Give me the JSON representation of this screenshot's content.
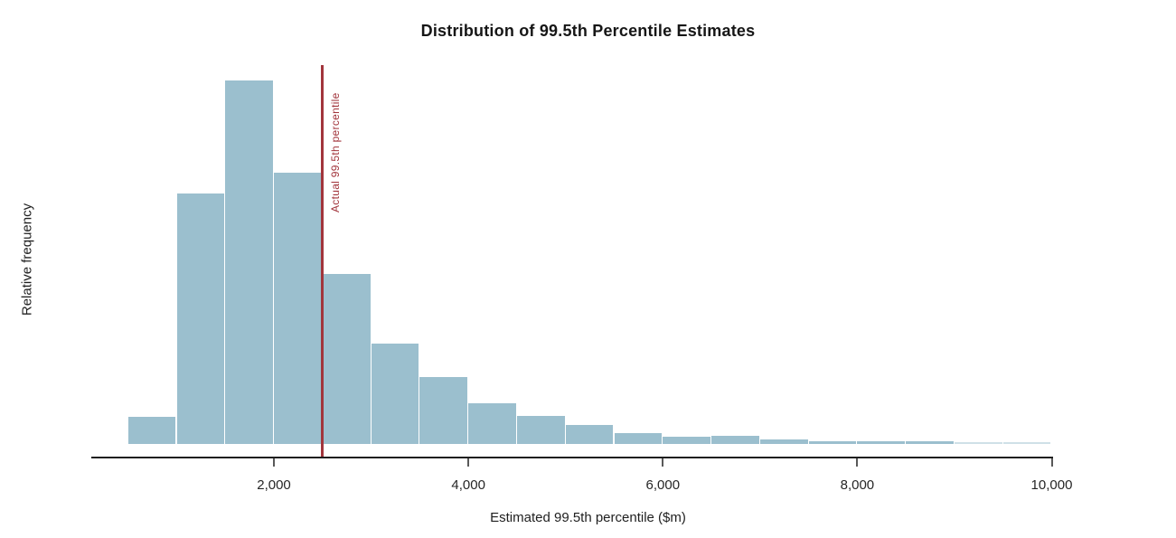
{
  "chart_data": {
    "type": "bar",
    "subtype": "histogram",
    "title": "Distribution of 99.5th Percentile Estimates",
    "xlabel": "Estimated 99.5th percentile ($m)",
    "ylabel": "Relative frequency",
    "x_ticks": [
      "2,000",
      "4,000",
      "6,000",
      "8,000",
      "10,000"
    ],
    "x_tick_values": [
      2000,
      4000,
      6000,
      8000,
      10000
    ],
    "xlim": [
      100,
      10000
    ],
    "grid": false,
    "legend": "none",
    "bin_width": 500,
    "bins": [
      {
        "start": 500,
        "end": 1000,
        "rel_freq": 0.0195
      },
      {
        "start": 1000,
        "end": 1500,
        "rel_freq": 0.18
      },
      {
        "start": 1500,
        "end": 2000,
        "rel_freq": 0.2616
      },
      {
        "start": 2000,
        "end": 2500,
        "rel_freq": 0.195
      },
      {
        "start": 2500,
        "end": 3000,
        "rel_freq": 0.1225
      },
      {
        "start": 3000,
        "end": 3500,
        "rel_freq": 0.0725
      },
      {
        "start": 3500,
        "end": 4000,
        "rel_freq": 0.0485
      },
      {
        "start": 4000,
        "end": 4500,
        "rel_freq": 0.029
      },
      {
        "start": 4500,
        "end": 5000,
        "rel_freq": 0.02
      },
      {
        "start": 5000,
        "end": 5500,
        "rel_freq": 0.0135
      },
      {
        "start": 5500,
        "end": 6000,
        "rel_freq": 0.0078
      },
      {
        "start": 6000,
        "end": 6500,
        "rel_freq": 0.0055
      },
      {
        "start": 6500,
        "end": 7000,
        "rel_freq": 0.0062
      },
      {
        "start": 7000,
        "end": 7500,
        "rel_freq": 0.0036
      },
      {
        "start": 7500,
        "end": 8000,
        "rel_freq": 0.002
      },
      {
        "start": 8000,
        "end": 8500,
        "rel_freq": 0.0023
      },
      {
        "start": 8500,
        "end": 9000,
        "rel_freq": 0.0023
      },
      {
        "start": 9000,
        "end": 9500,
        "rel_freq": 0.0013
      },
      {
        "start": 9500,
        "end": 10000,
        "rel_freq": 0.0013
      }
    ],
    "vline": {
      "value": 2500,
      "label": "Actual 99.5th percentile"
    }
  },
  "colors": {
    "bar": "#9bbfce",
    "bar_faint": "#cfe0e7",
    "reference_line": "#a2353c",
    "axis_line": "#1f1f1f",
    "tick": "#595959",
    "tick_label": "#262626",
    "title": "#161616",
    "background": "#ffffff"
  }
}
